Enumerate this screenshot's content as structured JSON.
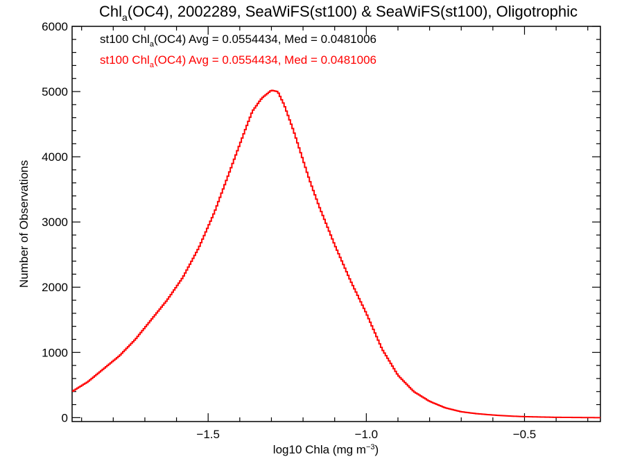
{
  "chart_data": {
    "type": "histogram",
    "title": {
      "part1": "Chl",
      "sub": "a",
      "part2": "(OC4), 2002289, SeaWiFS(st100) & SeaWiFS(st100), Oligotrophic"
    },
    "xlabel": {
      "main": "log10 Chla (mg m",
      "sup": "−3",
      "end": ")"
    },
    "ylabel": "Number of Observations",
    "xlim": [
      -1.93,
      -0.26
    ],
    "ylim": [
      -60,
      6000
    ],
    "x_ticks": [
      -1.5,
      -1.0,
      -0.5
    ],
    "x_tick_labels": [
      "−1.5",
      "−1.0",
      "−0.5"
    ],
    "y_ticks": [
      0,
      1000,
      2000,
      3000,
      4000,
      5000,
      6000
    ],
    "y_tick_labels": [
      "0",
      "1000",
      "2000",
      "3000",
      "4000",
      "5000",
      "6000"
    ],
    "annotations": [
      {
        "pre": "st100 Chl",
        "sub": "a",
        "post": "(OC4) Avg = 0.0554434, Med = 0.0481006",
        "color": "#000000"
      },
      {
        "pre": "st100 Chl",
        "sub": "a",
        "post": "(OC4) Avg = 0.0554434, Med = 0.0481006",
        "color": "#ff0000"
      }
    ],
    "series": [
      {
        "color": "#ff0000",
        "x": [
          -1.93,
          -1.88,
          -1.83,
          -1.78,
          -1.73,
          -1.68,
          -1.63,
          -1.58,
          -1.53,
          -1.48,
          -1.43,
          -1.38,
          -1.36,
          -1.33,
          -1.3,
          -1.28,
          -1.26,
          -1.23,
          -1.2,
          -1.18,
          -1.15,
          -1.1,
          -1.05,
          -1.0,
          -0.95,
          -0.9,
          -0.85,
          -0.8,
          -0.75,
          -0.7,
          -0.65,
          -0.6,
          -0.55,
          -0.5,
          -0.45,
          -0.4,
          -0.35,
          -0.3,
          -0.26
        ],
        "y": [
          400,
          550,
          750,
          950,
          1200,
          1500,
          1800,
          2150,
          2600,
          3150,
          3800,
          4450,
          4700,
          4900,
          5020,
          5000,
          4800,
          4400,
          3950,
          3650,
          3250,
          2650,
          2100,
          1600,
          1050,
          650,
          400,
          250,
          150,
          90,
          60,
          40,
          25,
          15,
          10,
          5,
          3,
          1,
          0
        ]
      }
    ]
  }
}
